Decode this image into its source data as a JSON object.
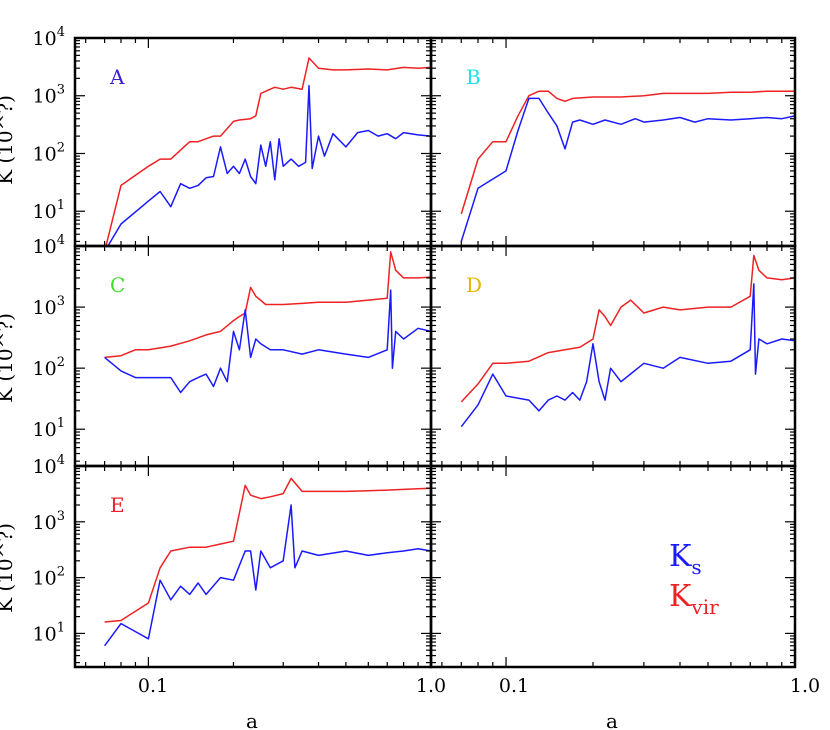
{
  "chart_data": {
    "type": "line",
    "layout": "3 rows x 2 columns of panels with shared axes",
    "x_scale": "log",
    "y_scale": "log",
    "xlim": [
      0.055,
      1.0
    ],
    "ylim": [
      2.5,
      10000
    ],
    "x_tick_labels": [
      "0.1",
      "1.0"
    ],
    "y_tick_labels": [
      "10^1",
      "10^2",
      "10^3",
      "10^4"
    ],
    "xlabel": "a",
    "ylabel": "K (10^?)",
    "colors": {
      "K_s": "#1a1aff",
      "K_vir": "#ee2222",
      "A": "#3a1fd6",
      "B": "#22e0e8",
      "C": "#3fdc2a",
      "D": "#e8b400",
      "E": "#ee2222"
    },
    "legend": {
      "placement": "bottom-right panel",
      "entries": [
        {
          "base": "K",
          "sub": "s",
          "series": "K_s"
        },
        {
          "base": "K",
          "sub": "vir",
          "series": "K_vir"
        }
      ]
    },
    "panels": [
      {
        "label": "A",
        "row": 0,
        "col": 0,
        "series": [
          {
            "name": "K_vir",
            "x": [
              0.07,
              0.08,
              0.1,
              0.11,
              0.12,
              0.14,
              0.15,
              0.17,
              0.18,
              0.2,
              0.21,
              0.23,
              0.24,
              0.25,
              0.27,
              0.28,
              0.3,
              0.32,
              0.35,
              0.37,
              0.4,
              0.45,
              0.5,
              0.6,
              0.7,
              0.8,
              0.9,
              1.0
            ],
            "y": [
              2,
              28,
              60,
              80,
              80,
              160,
              160,
              200,
              200,
              360,
              380,
              400,
              450,
              1100,
              1300,
              1400,
              1300,
              1400,
              1300,
              4500,
              3000,
              2800,
              2800,
              2900,
              2800,
              3100,
              3000,
              3100
            ]
          },
          {
            "name": "K_s",
            "x": [
              0.07,
              0.08,
              0.1,
              0.11,
              0.12,
              0.13,
              0.14,
              0.15,
              0.16,
              0.17,
              0.18,
              0.19,
              0.2,
              0.21,
              0.22,
              0.23,
              0.24,
              0.25,
              0.26,
              0.27,
              0.28,
              0.29,
              0.3,
              0.32,
              0.34,
              0.36,
              0.37,
              0.38,
              0.4,
              0.42,
              0.45,
              0.5,
              0.55,
              0.6,
              0.65,
              0.7,
              0.75,
              0.8,
              0.9,
              1.0
            ],
            "y": [
              2,
              6,
              15,
              22,
              12,
              30,
              25,
              28,
              38,
              40,
              130,
              45,
              60,
              45,
              80,
              40,
              30,
              140,
              60,
              160,
              35,
              180,
              60,
              80,
              60,
              70,
              1500,
              55,
              200,
              90,
              220,
              130,
              230,
              250,
              200,
              220,
              180,
              230,
              210,
              200
            ]
          }
        ]
      },
      {
        "label": "B",
        "row": 0,
        "col": 1,
        "series": [
          {
            "name": "K_vir",
            "x": [
              0.07,
              0.08,
              0.09,
              0.1,
              0.11,
              0.12,
              0.13,
              0.14,
              0.15,
              0.16,
              0.17,
              0.2,
              0.25,
              0.3,
              0.35,
              0.4,
              0.5,
              0.6,
              0.7,
              0.8,
              0.9,
              1.0
            ],
            "y": [
              9,
              80,
              160,
              160,
              450,
              1000,
              1200,
              1200,
              900,
              800,
              900,
              950,
              950,
              1000,
              1100,
              1100,
              1100,
              1150,
              1150,
              1200,
              1200,
              1200
            ]
          },
          {
            "name": "K_s",
            "x": [
              0.07,
              0.08,
              0.1,
              0.11,
              0.12,
              0.13,
              0.14,
              0.15,
              0.16,
              0.17,
              0.18,
              0.2,
              0.22,
              0.25,
              0.28,
              0.3,
              0.35,
              0.4,
              0.45,
              0.5,
              0.6,
              0.7,
              0.8,
              0.9,
              1.0
            ],
            "y": [
              3,
              25,
              50,
              250,
              900,
              900,
              500,
              300,
              120,
              350,
              380,
              320,
              380,
              320,
              400,
              350,
              380,
              420,
              350,
              400,
              380,
              400,
              420,
              400,
              450
            ]
          }
        ]
      },
      {
        "label": "C",
        "row": 1,
        "col": 0,
        "series": [
          {
            "name": "K_vir",
            "x": [
              0.07,
              0.08,
              0.09,
              0.1,
              0.12,
              0.14,
              0.16,
              0.18,
              0.2,
              0.21,
              0.22,
              0.23,
              0.24,
              0.26,
              0.3,
              0.35,
              0.4,
              0.5,
              0.6,
              0.7,
              0.72,
              0.75,
              0.8,
              0.9,
              1.0
            ],
            "y": [
              150,
              160,
              200,
              200,
              230,
              280,
              350,
              400,
              600,
              700,
              800,
              2100,
              1500,
              1100,
              1100,
              1150,
              1200,
              1200,
              1300,
              1400,
              8000,
              4000,
              3000,
              3000,
              3100
            ]
          },
          {
            "name": "K_s",
            "x": [
              0.07,
              0.08,
              0.09,
              0.1,
              0.12,
              0.13,
              0.14,
              0.15,
              0.16,
              0.17,
              0.18,
              0.19,
              0.2,
              0.21,
              0.22,
              0.23,
              0.24,
              0.25,
              0.27,
              0.3,
              0.35,
              0.4,
              0.5,
              0.6,
              0.7,
              0.72,
              0.73,
              0.75,
              0.8,
              0.9,
              1.0
            ],
            "y": [
              150,
              90,
              70,
              70,
              70,
              40,
              60,
              70,
              80,
              50,
              100,
              60,
              400,
              200,
              900,
              150,
              300,
              250,
              200,
              200,
              170,
              200,
              170,
              150,
              200,
              1900,
              100,
              400,
              300,
              450,
              400
            ]
          }
        ]
      },
      {
        "label": "D",
        "row": 1,
        "col": 1,
        "series": [
          {
            "name": "K_vir",
            "x": [
              0.07,
              0.08,
              0.09,
              0.1,
              0.12,
              0.14,
              0.16,
              0.18,
              0.2,
              0.21,
              0.22,
              0.23,
              0.25,
              0.27,
              0.3,
              0.35,
              0.4,
              0.5,
              0.6,
              0.7,
              0.72,
              0.75,
              0.8,
              0.9,
              1.0
            ],
            "y": [
              28,
              55,
              120,
              120,
              130,
              180,
              200,
              220,
              300,
              900,
              700,
              500,
              1000,
              1300,
              800,
              1000,
              900,
              1000,
              1000,
              1500,
              7000,
              4000,
              3000,
              2800,
              3000
            ]
          },
          {
            "name": "K_s",
            "x": [
              0.07,
              0.08,
              0.09,
              0.1,
              0.12,
              0.13,
              0.14,
              0.15,
              0.16,
              0.17,
              0.18,
              0.19,
              0.2,
              0.21,
              0.22,
              0.23,
              0.25,
              0.3,
              0.35,
              0.4,
              0.5,
              0.6,
              0.7,
              0.72,
              0.73,
              0.75,
              0.8,
              0.9,
              1.0
            ],
            "y": [
              11,
              25,
              80,
              35,
              30,
              20,
              30,
              35,
              30,
              40,
              30,
              60,
              250,
              60,
              30,
              100,
              60,
              120,
              100,
              150,
              120,
              130,
              200,
              2400,
              80,
              300,
              250,
              300,
              280
            ]
          }
        ]
      },
      {
        "label": "E",
        "row": 2,
        "col": 0,
        "series": [
          {
            "name": "K_vir",
            "x": [
              0.07,
              0.08,
              0.1,
              0.11,
              0.12,
              0.14,
              0.16,
              0.18,
              0.2,
              0.22,
              0.23,
              0.25,
              0.27,
              0.3,
              0.32,
              0.35,
              0.4,
              0.5,
              0.6,
              0.7,
              0.8,
              0.9,
              1.0
            ],
            "y": [
              16,
              17,
              35,
              150,
              300,
              350,
              350,
              400,
              450,
              4500,
              3000,
              2600,
              2800,
              3200,
              6000,
              3500,
              3500,
              3500,
              3600,
              3700,
              3800,
              3900,
              4000
            ]
          },
          {
            "name": "K_s",
            "x": [
              0.07,
              0.08,
              0.1,
              0.11,
              0.12,
              0.13,
              0.14,
              0.15,
              0.16,
              0.18,
              0.2,
              0.22,
              0.23,
              0.24,
              0.25,
              0.27,
              0.3,
              0.32,
              0.33,
              0.35,
              0.4,
              0.5,
              0.6,
              0.7,
              0.8,
              0.9,
              1.0
            ],
            "y": [
              6,
              15,
              8,
              90,
              40,
              70,
              50,
              80,
              50,
              100,
              90,
              300,
              300,
              60,
              300,
              150,
              200,
              2000,
              150,
              300,
              250,
              300,
              250,
              280,
              300,
              330,
              300
            ]
          }
        ]
      },
      {
        "label": "",
        "row": 2,
        "col": 1,
        "series": []
      }
    ]
  }
}
